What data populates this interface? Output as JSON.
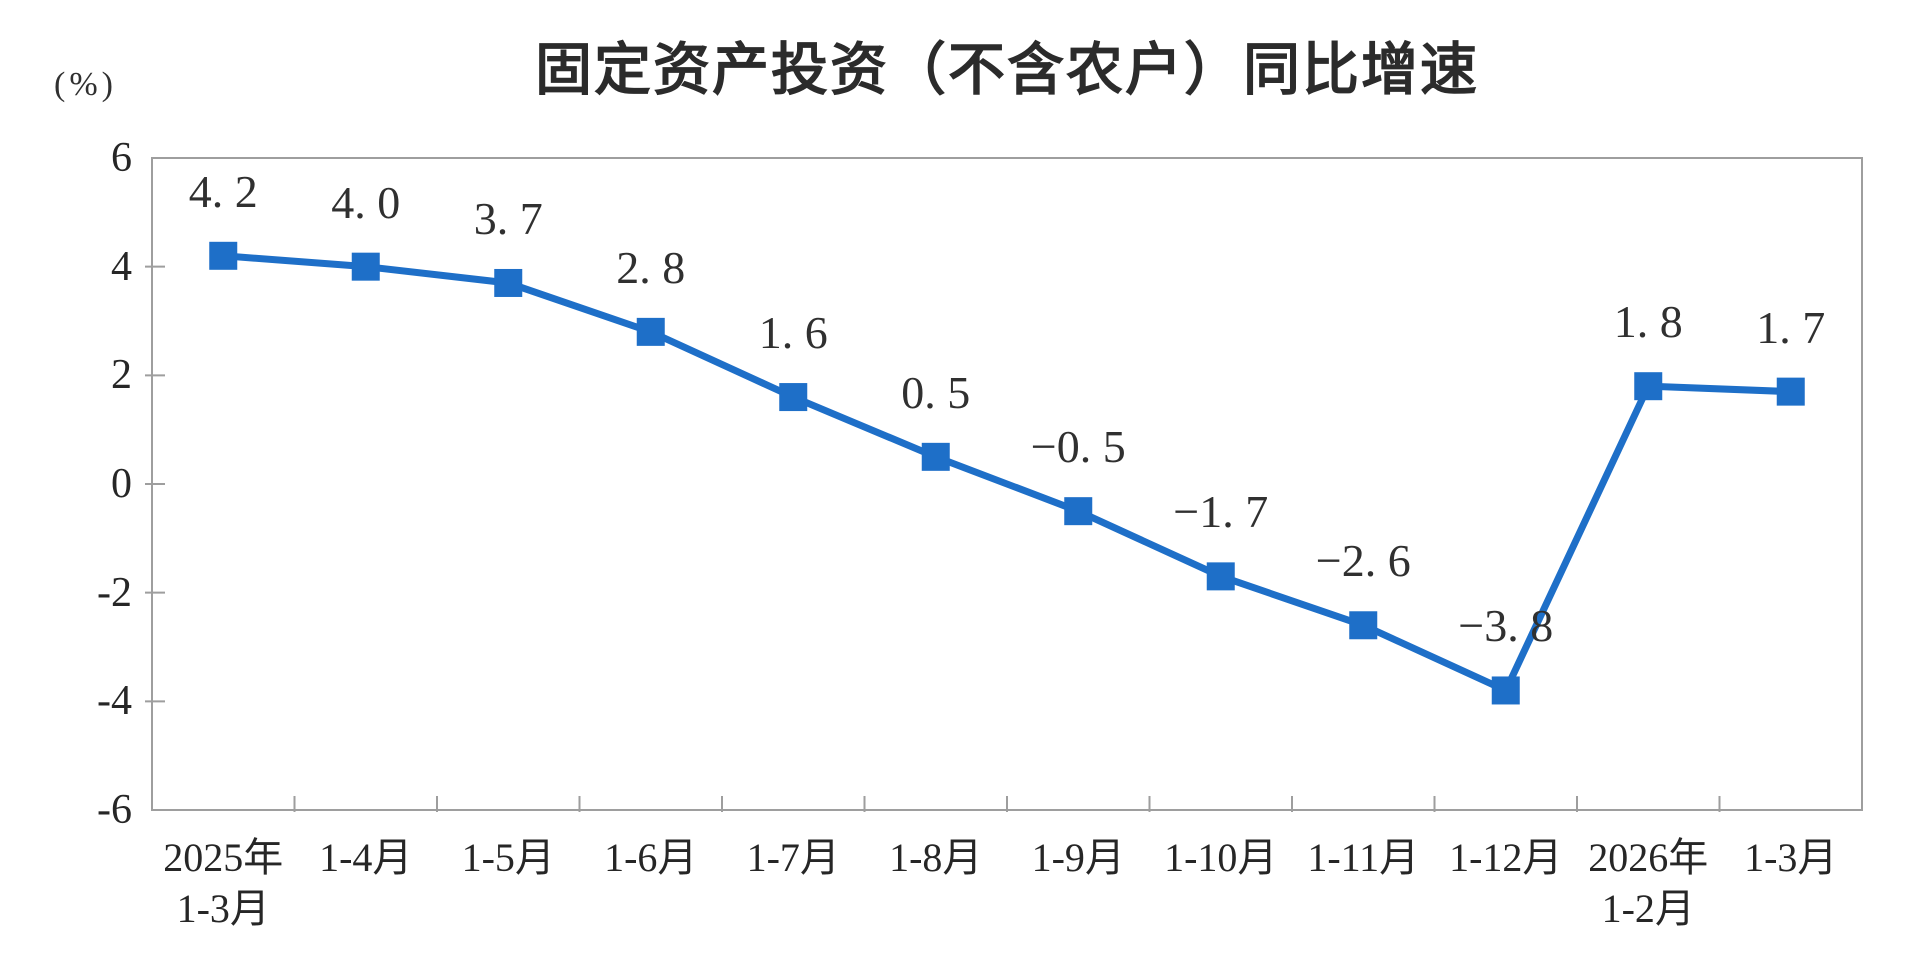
{
  "colors": {
    "line": "#1e6fc8",
    "marker": "#1e6fc8",
    "axis": "#9e9e9e",
    "text": "#303030",
    "title": "#2b2b2b"
  },
  "chart_data": {
    "type": "line",
    "title": "固定资产投资（不含农户）同比增速",
    "ylabel": "(%)",
    "xlabel": "",
    "ylim": [
      -6,
      6
    ],
    "y_ticks": [
      6,
      4,
      2,
      0,
      -2,
      -4,
      -6
    ],
    "grid": false,
    "legend_position": "none",
    "marker_shape": "square",
    "categories": [
      "2025年\n1-3月",
      "1-4月",
      "1-5月",
      "1-6月",
      "1-7月",
      "1-8月",
      "1-9月",
      "1-10月",
      "1-11月",
      "1-12月",
      "2026年\n1-2月",
      "1-3月"
    ],
    "values": [
      4.2,
      4.0,
      3.7,
      2.8,
      1.6,
      0.5,
      -0.5,
      -1.7,
      -2.6,
      -3.8,
      1.8,
      1.7
    ],
    "point_labels": [
      "4. 2",
      "4. 0",
      "3. 7",
      "2. 8",
      "1. 6",
      "0. 5",
      "−0. 5",
      "−1. 7",
      "−2. 6",
      "−3. 8",
      "1. 8",
      "1. 7"
    ]
  }
}
